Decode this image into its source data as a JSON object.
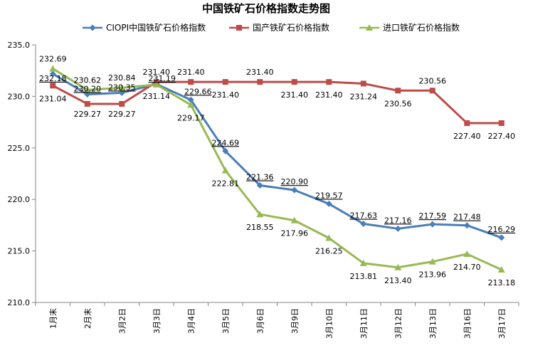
{
  "chart_data": {
    "type": "line",
    "title": "中国铁矿石价格指数走势图",
    "categories": [
      "1月末",
      "2月末",
      "3月2日",
      "3月3日",
      "3月4日",
      "3月5日",
      "3月6日",
      "3月9日",
      "3月10日",
      "3月11日",
      "3月12日",
      "3月13日",
      "3月16日",
      "3月17日"
    ],
    "ylim": [
      210,
      235
    ],
    "yticks": [
      "210.0",
      "215.0",
      "220.0",
      "225.0",
      "230.0",
      "235.0"
    ],
    "grid": false,
    "legend_position": "top",
    "series": [
      {
        "name": "CIOPI中国铁矿石价格指数",
        "color": "#4a7ebb",
        "marker": "diamond",
        "values": [
          232.18,
          230.2,
          230.35,
          231.19,
          229.66,
          224.69,
          221.36,
          220.9,
          219.57,
          217.63,
          217.16,
          217.59,
          217.48,
          216.29
        ],
        "labels": [
          "232.18",
          "230.20",
          "230.35",
          "231.19",
          "229.66",
          "224.69",
          "221.36",
          "220.90",
          "219.57",
          "217.63",
          "217.16",
          "217.59",
          "217.48",
          "216.29"
        ]
      },
      {
        "name": "国产铁矿石价格指数",
        "color": "#be4b48",
        "marker": "square",
        "values": [
          231.04,
          229.27,
          229.27,
          231.4,
          231.4,
          231.4,
          231.4,
          231.4,
          231.4,
          231.24,
          230.56,
          230.56,
          227.4,
          227.4
        ],
        "labels": [
          "231.04",
          "229.27",
          "229.27",
          "231.40",
          "231.40",
          "231.40",
          "231.40",
          "231.40",
          "231.40",
          "231.24",
          "230.56",
          "230.56",
          "227.40",
          "227.40"
        ]
      },
      {
        "name": "进口铁矿石价格指数",
        "color": "#98b954",
        "marker": "triangle",
        "values": [
          232.69,
          230.62,
          230.84,
          231.14,
          229.17,
          222.81,
          218.55,
          217.96,
          216.25,
          213.81,
          213.4,
          213.96,
          214.7,
          213.18
        ],
        "labels": [
          "232.69",
          "230.62",
          "230.84",
          "231.14",
          "229.17",
          "222.81",
          "218.55",
          "217.96",
          "216.25",
          "213.81",
          "213.40",
          "213.96",
          "214.70",
          "213.18"
        ]
      }
    ]
  }
}
